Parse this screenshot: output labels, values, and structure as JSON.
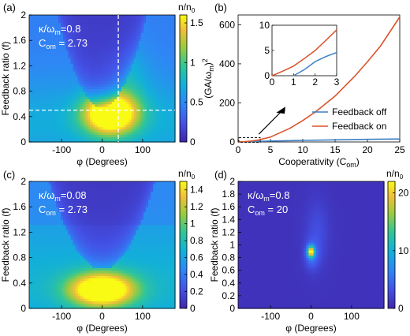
{
  "chart_data": [
    {
      "panel": "(a)",
      "type": "heatmap",
      "xlabel": "φ (Degrees)",
      "ylabel": "Feedback ratio (f)",
      "xlim": [
        -180,
        180
      ],
      "ylim": [
        0,
        2
      ],
      "xticks": [
        "-100",
        "0",
        "100"
      ],
      "yticks": [
        "0",
        "0.4",
        "0.8",
        "1.2",
        "1.6",
        "2"
      ],
      "colorbar_label": "n/n",
      "colorbar_sub": "0",
      "colorbar_ticks": [
        "0",
        "0.5",
        "1",
        "1.5"
      ],
      "colorbar_range": [
        0,
        1.6
      ],
      "annotation": {
        "kappa": "κ/ω",
        "kappa_sub": "m",
        "kappa_val": "=0.8",
        "c": "C",
        "c_sub": "om",
        "c_val": " = 2.73"
      },
      "crosshair": {
        "x": 40,
        "y": 0.5
      },
      "field": {
        "peak_x": 20,
        "peak_y": 0.45,
        "peak": 1.6,
        "base": 0.35
      }
    },
    {
      "panel": "(b)",
      "type": "line",
      "xlabel": "Cooperativity (C",
      "xlabel_sub": "om",
      "xlabel_end": ")",
      "ylabel": "(GA/ω",
      "ylabel_sub": "m",
      "ylabel_end": ")",
      "ylabel_sup": "2",
      "xlim": [
        0,
        25
      ],
      "ylim": [
        0,
        650
      ],
      "xticks": [
        "0",
        "5",
        "10",
        "15",
        "20",
        "25"
      ],
      "yticks": [
        "0",
        "200",
        "400",
        "600"
      ],
      "legend_position": "lower-right",
      "series": [
        {
          "name": "Feedback off",
          "color": "#3b7fc4",
          "x": [
            1,
            2,
            3,
            5,
            10,
            15,
            20,
            25
          ],
          "y": [
            0,
            1.7,
            3.0,
            5.0,
            8.0,
            11.0,
            13.5,
            15.5
          ]
        },
        {
          "name": "Feedback on",
          "color": "#d9532b",
          "x": [
            0,
            1,
            2,
            3,
            5,
            8,
            10,
            12,
            15,
            18,
            20,
            22,
            25
          ],
          "y": [
            0,
            1.8,
            5.0,
            9.0,
            25,
            70,
            110,
            155,
            235,
            335,
            410,
            490,
            640
          ]
        }
      ],
      "inset": {
        "xlim": [
          0,
          3
        ],
        "ylim": [
          0,
          10
        ],
        "xticks": [
          "0",
          "1",
          "2",
          "3"
        ],
        "yticks": [
          "0",
          "5",
          "10"
        ],
        "series": [
          {
            "name": "Feedback off",
            "color": "#3b7fc4",
            "x": [
              1,
              1.5,
              2,
              2.5,
              3
            ],
            "y": [
              0,
              1.2,
              2.8,
              3.8,
              4.6
            ]
          },
          {
            "name": "Feedback on",
            "color": "#d9532b",
            "x": [
              0,
              0.5,
              1,
              1.5,
              2,
              2.5,
              3
            ],
            "y": [
              0,
              0.9,
              1.9,
              3.4,
              5.0,
              7.0,
              9.1
            ]
          }
        ]
      }
    },
    {
      "panel": "(c)",
      "type": "heatmap",
      "xlabel": "φ (Degrees)",
      "ylabel": "Feedback ratio (f)",
      "xlim": [
        -180,
        180
      ],
      "ylim": [
        0,
        2
      ],
      "xticks": [
        "-100",
        "0",
        "100"
      ],
      "yticks": [
        "0",
        "0.4",
        "0.8",
        "1.2",
        "1.6",
        "2"
      ],
      "colorbar_label": "n/n",
      "colorbar_sub": "0",
      "colorbar_ticks": [
        "0",
        "0.2",
        "0.4",
        "0.6",
        "0.8",
        "1",
        "1.2",
        "1.4"
      ],
      "colorbar_range": [
        0,
        1.5
      ],
      "annotation": {
        "kappa": "κ/ω",
        "kappa_sub": "m",
        "kappa_val": "=0.08",
        "c": "C",
        "c_sub": "om",
        "c_val": " = 2.73"
      },
      "field": {
        "peak_x": 0,
        "peak_y": 0.3,
        "peak": 1.45,
        "base": 0.4
      }
    },
    {
      "panel": "(d)",
      "type": "heatmap",
      "xlabel": "φ (Degrees)",
      "ylabel": "Feedback ratio (f)",
      "xlim": [
        -180,
        180
      ],
      "ylim": [
        0,
        2
      ],
      "xticks": [
        "-100",
        "0",
        "100"
      ],
      "yticks": [
        "0",
        "0.2",
        "0.4",
        "0.6",
        "0.8",
        "1",
        "1.2",
        "1.4",
        "1.6",
        "1.8",
        "2"
      ],
      "colorbar_label": "n/n",
      "colorbar_sub": "0",
      "colorbar_ticks": [
        "0",
        "10",
        "20"
      ],
      "colorbar_range": [
        0,
        22
      ],
      "annotation": {
        "kappa": "κ/ω",
        "kappa_sub": "m",
        "kappa_val": "=0.8",
        "c": "C",
        "c_sub": "om",
        "c_val": " = 20"
      },
      "field": {
        "peak_x": 0,
        "peak_y": 0.9,
        "peak": 20,
        "base": 0.5
      }
    }
  ],
  "colors": {
    "dark": "#3a3f9e",
    "light": "#ffffff"
  }
}
